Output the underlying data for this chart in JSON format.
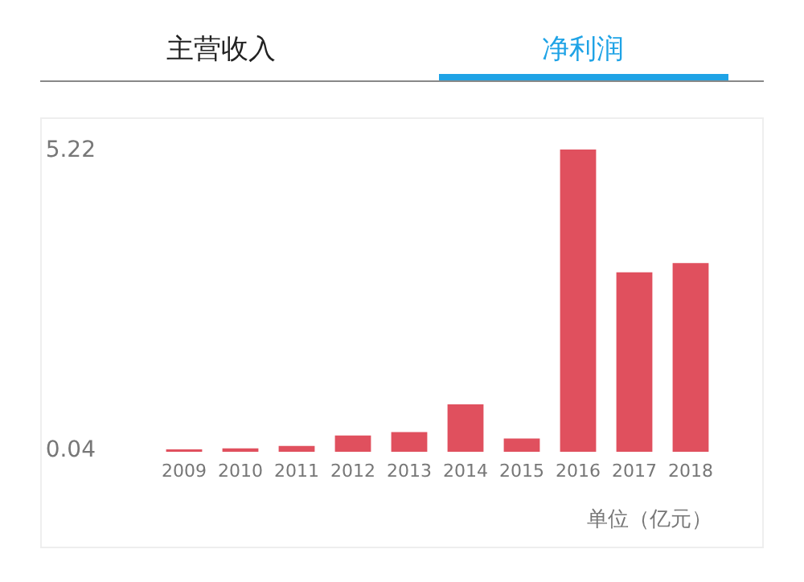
{
  "chart_data": {
    "type": "bar",
    "title": "净利润",
    "annotations": [
      "主营收入",
      "单位（亿元）"
    ],
    "categories": [
      "2009",
      "2010",
      "2011",
      "2012",
      "2013",
      "2014",
      "2015",
      "2016",
      "2017",
      "2018"
    ],
    "values": [
      0.04,
      0.06,
      0.1,
      0.28,
      0.34,
      0.82,
      0.23,
      5.22,
      3.1,
      3.26
    ],
    "color": "#e0505e",
    "ylim": [
      0,
      5.22
    ],
    "yticks": [
      0.04,
      5.22
    ],
    "grid": false
  }
}
